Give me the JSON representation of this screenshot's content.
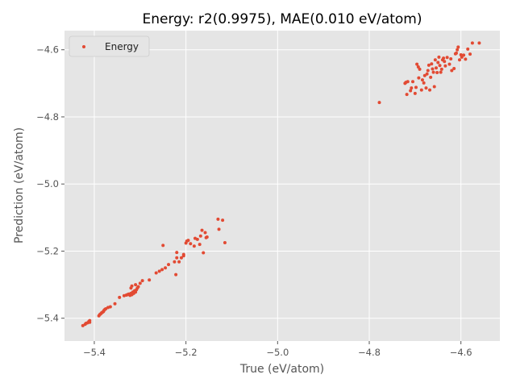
{
  "chart_data": {
    "type": "scatter",
    "title": "Energy: r2(0.9975), MAE(0.010 eV/atom)",
    "xlabel": "True (eV/atom)",
    "ylabel": "Prediction (eV/atom)",
    "xlim": [
      -5.465,
      -4.515
    ],
    "ylim": [
      -5.468,
      -4.543
    ],
    "x_ticks": [
      -5.4,
      -5.2,
      -5.0,
      -4.8,
      -4.6
    ],
    "y_ticks": [
      -5.4,
      -5.2,
      -5.0,
      -4.8,
      -4.6
    ],
    "tick_labels": {
      "x": [
        "−5.4",
        "−5.2",
        "−5.0",
        "−4.8",
        "−4.6"
      ],
      "y": [
        "−5.4",
        "−5.2",
        "−5.0",
        "−4.8",
        "−4.6"
      ]
    },
    "grid": true,
    "style": "ggplot",
    "legend": {
      "position": "top-left",
      "entries": [
        "Energy"
      ]
    },
    "colors": {
      "series": "#E24A33",
      "background": "#E5E5E5",
      "grid": "#FFFFFF"
    },
    "series": [
      {
        "name": "Energy",
        "points": [
          [
            -5.425,
            -5.422
          ],
          [
            -5.42,
            -5.418
          ],
          [
            -5.418,
            -5.415
          ],
          [
            -5.415,
            -5.414
          ],
          [
            -5.412,
            -5.41
          ],
          [
            -5.41,
            -5.407
          ],
          [
            -5.41,
            -5.412
          ],
          [
            -5.39,
            -5.393
          ],
          [
            -5.388,
            -5.389
          ],
          [
            -5.386,
            -5.387
          ],
          [
            -5.384,
            -5.384
          ],
          [
            -5.382,
            -5.382
          ],
          [
            -5.38,
            -5.38
          ],
          [
            -5.379,
            -5.377
          ],
          [
            -5.377,
            -5.374
          ],
          [
            -5.375,
            -5.372
          ],
          [
            -5.37,
            -5.368
          ],
          [
            -5.365,
            -5.366
          ],
          [
            -5.355,
            -5.357
          ],
          [
            -5.345,
            -5.338
          ],
          [
            -5.335,
            -5.333
          ],
          [
            -5.33,
            -5.331
          ],
          [
            -5.328,
            -5.33
          ],
          [
            -5.325,
            -5.328
          ],
          [
            -5.322,
            -5.332
          ],
          [
            -5.32,
            -5.326
          ],
          [
            -5.318,
            -5.33
          ],
          [
            -5.316,
            -5.322
          ],
          [
            -5.314,
            -5.326
          ],
          [
            -5.312,
            -5.318
          ],
          [
            -5.31,
            -5.322
          ],
          [
            -5.308,
            -5.315
          ],
          [
            -5.306,
            -5.31
          ],
          [
            -5.304,
            -5.306
          ],
          [
            -5.32,
            -5.31
          ],
          [
            -5.318,
            -5.304
          ],
          [
            -5.31,
            -5.3
          ],
          [
            -5.3,
            -5.296
          ],
          [
            -5.295,
            -5.288
          ],
          [
            -5.28,
            -5.286
          ],
          [
            -5.265,
            -5.265
          ],
          [
            -5.258,
            -5.26
          ],
          [
            -5.252,
            -5.255
          ],
          [
            -5.25,
            -5.183
          ],
          [
            -5.245,
            -5.25
          ],
          [
            -5.238,
            -5.24
          ],
          [
            -5.225,
            -5.232
          ],
          [
            -5.222,
            -5.27
          ],
          [
            -5.22,
            -5.22
          ],
          [
            -5.22,
            -5.204
          ],
          [
            -5.215,
            -5.232
          ],
          [
            -5.21,
            -5.22
          ],
          [
            -5.205,
            -5.21
          ],
          [
            -5.205,
            -5.214
          ],
          [
            -5.2,
            -5.176
          ],
          [
            -5.198,
            -5.17
          ],
          [
            -5.195,
            -5.168
          ],
          [
            -5.19,
            -5.178
          ],
          [
            -5.182,
            -5.185
          ],
          [
            -5.18,
            -5.162
          ],
          [
            -5.175,
            -5.165
          ],
          [
            -5.17,
            -5.18
          ],
          [
            -5.168,
            -5.155
          ],
          [
            -5.165,
            -5.138
          ],
          [
            -5.162,
            -5.205
          ],
          [
            -5.158,
            -5.145
          ],
          [
            -5.156,
            -5.16
          ],
          [
            -5.154,
            -5.158
          ],
          [
            -5.13,
            -5.105
          ],
          [
            -5.128,
            -5.135
          ],
          [
            -5.12,
            -5.108
          ],
          [
            -5.115,
            -5.175
          ],
          [
            -4.778,
            -4.757
          ],
          [
            -4.722,
            -4.7
          ],
          [
            -4.72,
            -4.697
          ],
          [
            -4.718,
            -4.733
          ],
          [
            -4.716,
            -4.695
          ],
          [
            -4.71,
            -4.722
          ],
          [
            -4.708,
            -4.714
          ],
          [
            -4.705,
            -4.695
          ],
          [
            -4.7,
            -4.73
          ],
          [
            -4.698,
            -4.712
          ],
          [
            -4.696,
            -4.643
          ],
          [
            -4.693,
            -4.651
          ],
          [
            -4.69,
            -4.658
          ],
          [
            -4.692,
            -4.684
          ],
          [
            -4.686,
            -4.72
          ],
          [
            -4.684,
            -4.69
          ],
          [
            -4.681,
            -4.699
          ],
          [
            -4.679,
            -4.677
          ],
          [
            -4.676,
            -4.714
          ],
          [
            -4.674,
            -4.672
          ],
          [
            -4.672,
            -4.662
          ],
          [
            -4.67,
            -4.646
          ],
          [
            -4.668,
            -4.72
          ],
          [
            -4.666,
            -4.682
          ],
          [
            -4.664,
            -4.642
          ],
          [
            -4.662,
            -4.657
          ],
          [
            -4.66,
            -4.667
          ],
          [
            -4.658,
            -4.71
          ],
          [
            -4.656,
            -4.63
          ],
          [
            -4.654,
            -4.654
          ],
          [
            -4.652,
            -4.668
          ],
          [
            -4.65,
            -4.638
          ],
          [
            -4.648,
            -4.622
          ],
          [
            -4.646,
            -4.647
          ],
          [
            -4.644,
            -4.667
          ],
          [
            -4.642,
            -4.658
          ],
          [
            -4.64,
            -4.63
          ],
          [
            -4.638,
            -4.625
          ],
          [
            -4.636,
            -4.635
          ],
          [
            -4.634,
            -4.648
          ],
          [
            -4.63,
            -4.623
          ],
          [
            -4.625,
            -4.643
          ],
          [
            -4.622,
            -4.627
          ],
          [
            -4.62,
            -4.662
          ],
          [
            -4.615,
            -4.656
          ],
          [
            -4.612,
            -4.612
          ],
          [
            -4.61,
            -4.61
          ],
          [
            -4.608,
            -4.6
          ],
          [
            -4.606,
            -4.592
          ],
          [
            -4.603,
            -4.63
          ],
          [
            -4.6,
            -4.615
          ],
          [
            -4.598,
            -4.622
          ],
          [
            -4.594,
            -4.616
          ],
          [
            -4.59,
            -4.628
          ],
          [
            -4.585,
            -4.598
          ],
          [
            -4.58,
            -4.613
          ],
          [
            -4.575,
            -4.58
          ],
          [
            -4.56,
            -4.58
          ]
        ]
      }
    ]
  }
}
